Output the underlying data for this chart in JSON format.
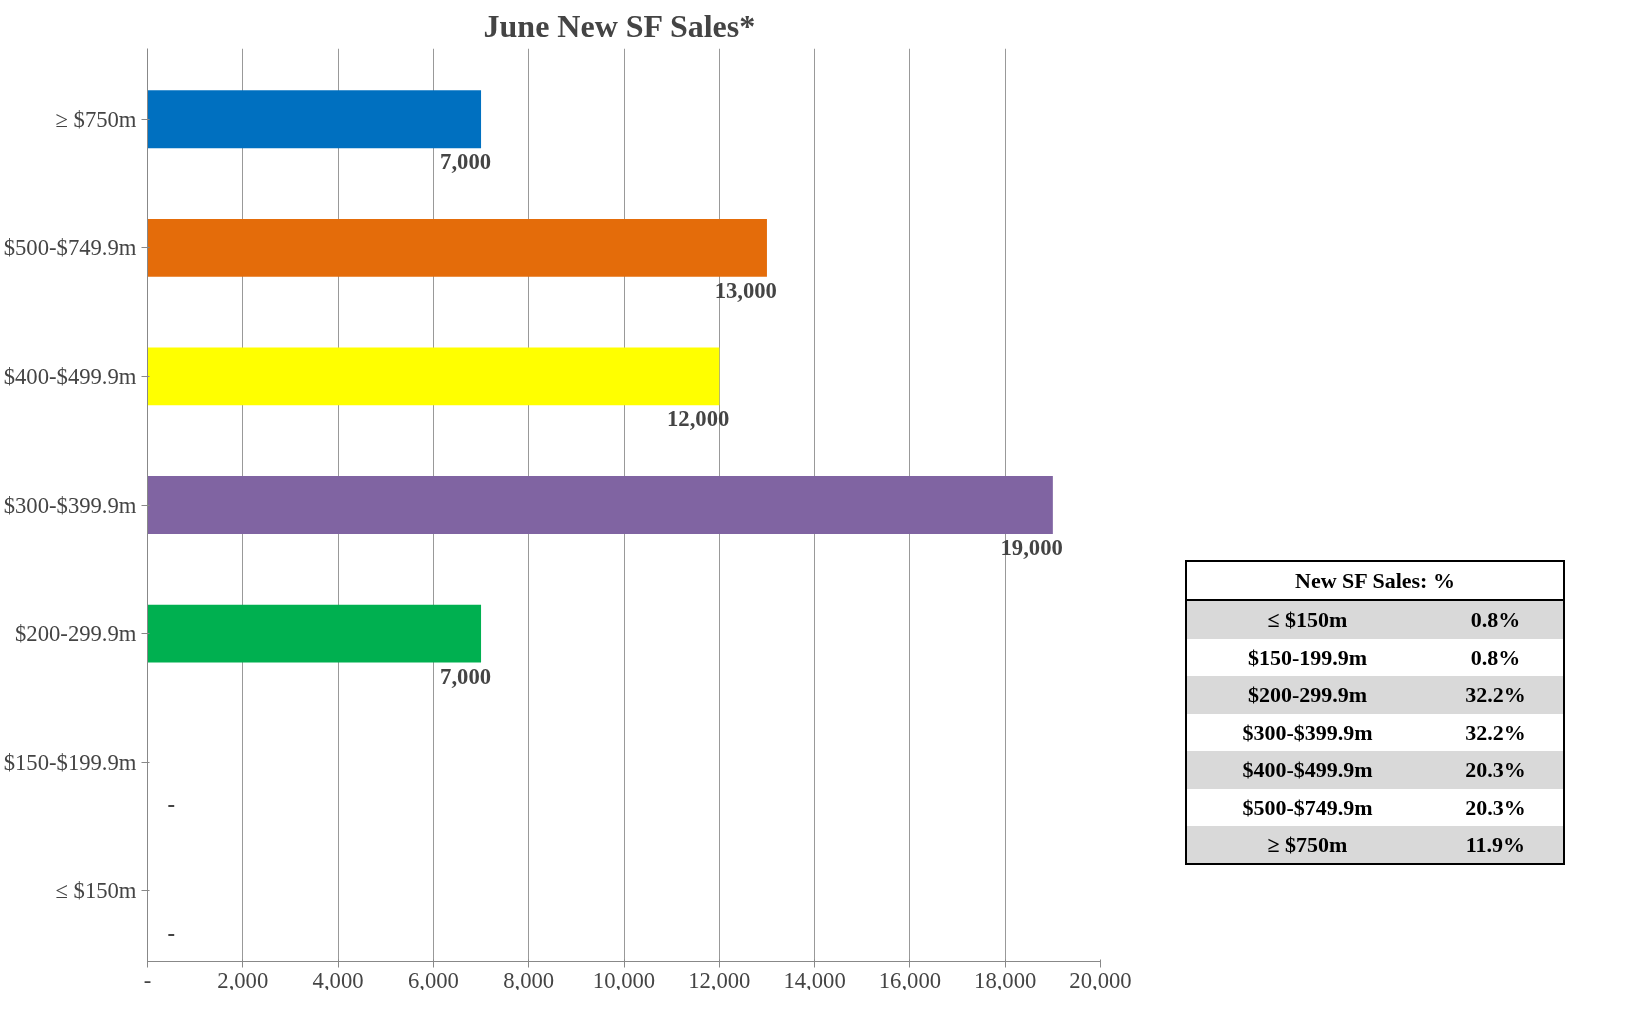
{
  "chart_data": {
    "type": "bar",
    "orientation": "horizontal",
    "title": "June  New SF Sales*",
    "categories": [
      "≥ $750m",
      "$500-$749.9m",
      "$400-$499.9m",
      "$300-$399.9m",
      "$200-299.9m",
      "$150-$199.9m",
      "≤ $150m"
    ],
    "values": [
      7000,
      13000,
      12000,
      19000,
      7000,
      0,
      0
    ],
    "colors": [
      "#0070c0",
      "#e46c0a",
      "#ffff00",
      "#8064a2",
      "#00b050",
      "#ffffff",
      "#ffffff"
    ],
    "value_labels": [
      "7,000",
      "13,000",
      "12,000",
      "19,000",
      "7,000",
      "-",
      "-"
    ],
    "xlim": [
      0,
      20000
    ],
    "xticks": [
      {
        "value": 0,
        "label": "-"
      },
      {
        "value": 2000,
        "label": "2,000"
      },
      {
        "value": 4000,
        "label": "4,000"
      },
      {
        "value": 6000,
        "label": "6,000"
      },
      {
        "value": 8000,
        "label": "8,000"
      },
      {
        "value": 10000,
        "label": "10,000"
      },
      {
        "value": 12000,
        "label": "12,000"
      },
      {
        "value": 14000,
        "label": "14,000"
      },
      {
        "value": 16000,
        "label": "16,000"
      },
      {
        "value": 18000,
        "label": "18,000"
      },
      {
        "value": 20000,
        "label": "20,000"
      }
    ],
    "grid": "x",
    "annotations": [
      "New SF Sales: %",
      "≤ $150m",
      "0.8%",
      "$150-199.9m",
      "0.8%",
      "$200-299.9m",
      "32.2%",
      "$300-$399.9m",
      "32.2%",
      "$400-$499.9m",
      "20.3%",
      "$500-$749.9m",
      "20.3%",
      "≥ $750m",
      "11.9%"
    ]
  }
}
